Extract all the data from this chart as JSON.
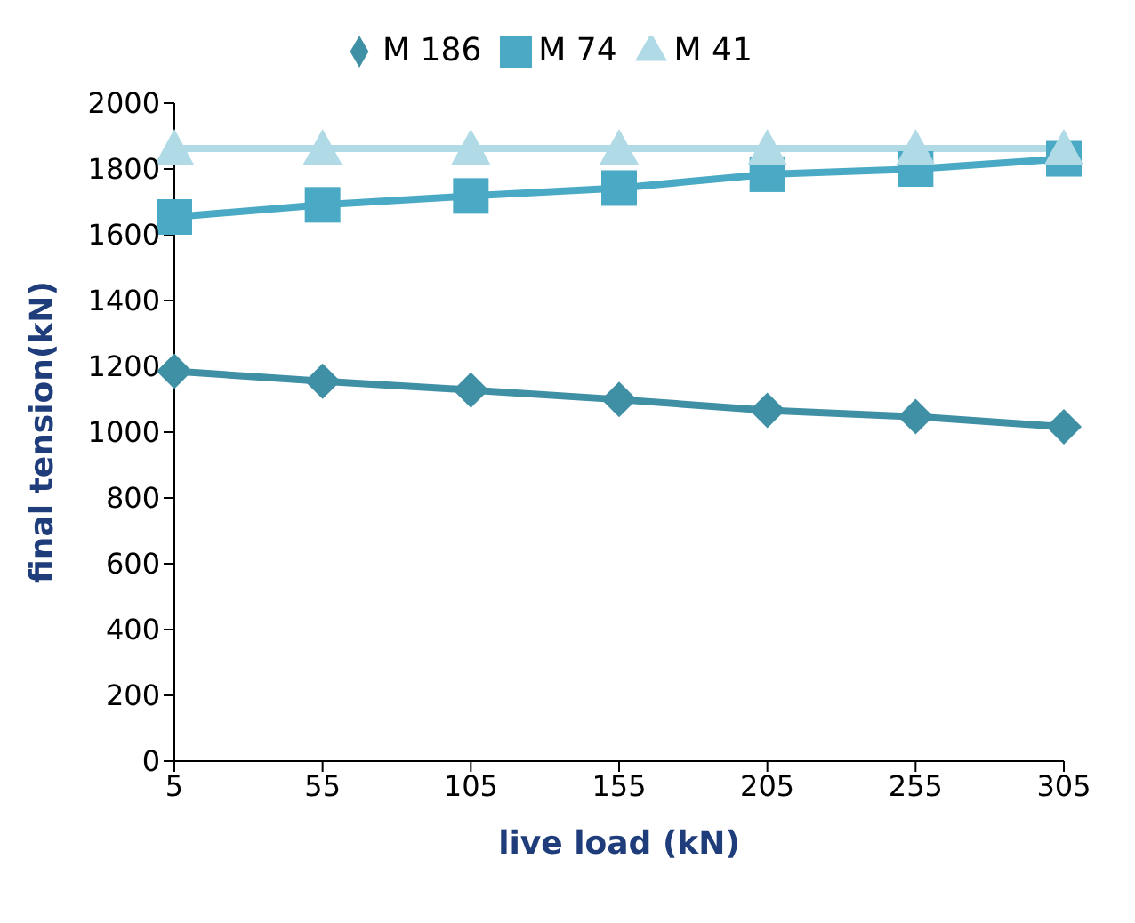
{
  "chart_data": {
    "type": "line",
    "xlabel": "live load (kN)",
    "ylabel": "final tension(kN)",
    "x": [
      5,
      55,
      105,
      155,
      205,
      255,
      305
    ],
    "xlim": [
      5,
      305
    ],
    "xticks": [
      5,
      55,
      105,
      155,
      205,
      255,
      305
    ],
    "ylim": [
      0,
      2000
    ],
    "yticks": [
      0,
      200,
      400,
      600,
      800,
      1000,
      1200,
      1400,
      1600,
      1800,
      2000
    ],
    "grid": false,
    "legend": "top",
    "series": [
      {
        "name": "M 186",
        "color": "#3f8fa5",
        "marker": "diamond",
        "values": [
          1185,
          1155,
          1128,
          1099,
          1066,
          1047,
          1016
        ]
      },
      {
        "name": "M 74",
        "color": "#4aaac6",
        "marker": "square",
        "values": [
          1654,
          1691,
          1718,
          1742,
          1784,
          1800,
          1831
        ]
      },
      {
        "name": "M 41",
        "color": "#b0dbe6",
        "marker": "triangle",
        "values": [
          1862,
          1862,
          1862,
          1862,
          1862,
          1862,
          1862
        ]
      }
    ]
  }
}
